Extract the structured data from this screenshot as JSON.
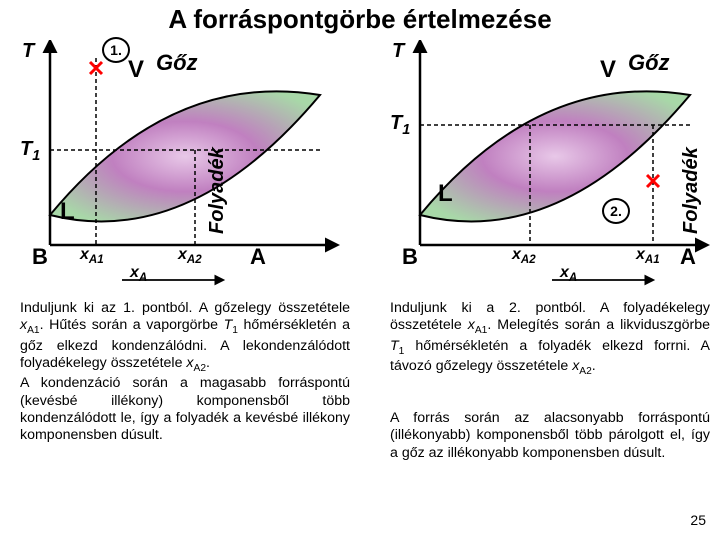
{
  "title": "A forráspontgörbe értelmezése",
  "slide_number": "25",
  "diagram_style": {
    "background_color": "#ffffff",
    "axis_color": "#000000",
    "lens_fill_top": "#a8d8a8",
    "lens_fill_mid": "#c080c0",
    "lens_stroke": "#000000",
    "dashed_color": "#000000",
    "cross_color": "#ff0000",
    "label_fontsize": 20,
    "title_fontsize": 26
  },
  "labels": {
    "T": "T",
    "T1": "T",
    "T1_sub": "1",
    "V": "V",
    "goz": "Gőz",
    "L": "L",
    "folyadek": "Folyadék",
    "B": "B",
    "A": "A",
    "xA1": "x",
    "xA1_sub": "A1",
    "xA2": "x",
    "xA2_sub": "A2",
    "xA": "x",
    "xA_sub": "A",
    "marker1": "1.",
    "marker2": "2."
  },
  "text": {
    "left_html": "Induljunk ki az 1. pontból. A gőzelegy összetétele <i>x</i><sub>A1</sub>. Hűtés során a vaporgörbe <i>T</i><sub>1</sub> hőmérsékletén a gőz elkezd kondenzálódni. A lekondenzálódott folyadékelegy összetétele <i>x</i><sub>A2</sub>.<br>A kondenzáció során a magasabb forráspontú (kevésbé illékony) komponensből több kondenzálódott le, így a folyadék a kevésbé illékony komponensben dúsult.",
    "right1_html": "Induljunk ki a 2. pontból. A folyadékelegy összetétele <i>x</i><sub>A1</sub>. Melegítés során a likviduszgörbe <i>T</i><sub>1</sub> hőmérsékletén a folyadék elkezd forrni. A távozó gőzelegy összetétele <i>x</i><sub>A2</sub>.",
    "right2_html": "A forrás során az alacsonyabb forráspontú (illékonyabb) komponensből több párolgott el, így a gőz az illékonyabb komponensben dúsult."
  }
}
